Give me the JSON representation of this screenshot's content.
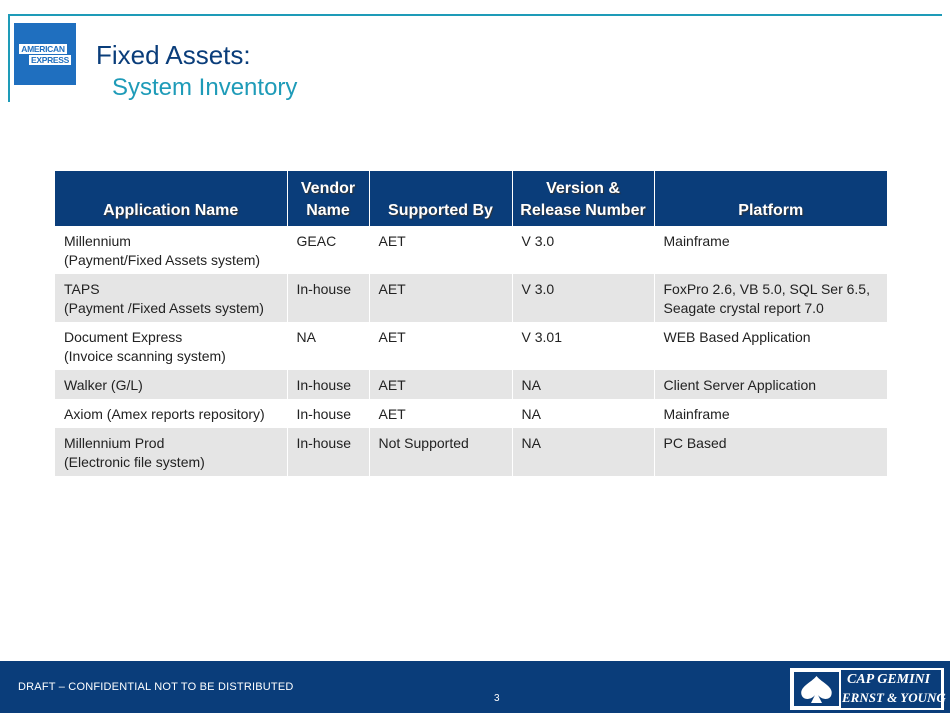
{
  "header": {
    "title": "Fixed Assets:",
    "subtitle": "System Inventory",
    "logo_line1": "AMERICAN",
    "logo_line2": "EXPRESS"
  },
  "table": {
    "columns": [
      "Application Name",
      "Vendor Name",
      "Supported By",
      "Version & Release Number",
      "Platform"
    ],
    "column_lines": [
      [
        "Application Name"
      ],
      [
        "Vendor",
        "Name"
      ],
      [
        "Supported By"
      ],
      [
        "Version &",
        "Release Number"
      ],
      [
        "Platform"
      ]
    ],
    "rows": [
      [
        [
          "Millennium",
          "(Payment/Fixed Assets system)"
        ],
        [
          "GEAC"
        ],
        [
          "AET"
        ],
        [
          "V 3.0"
        ],
        [
          "Mainframe"
        ]
      ],
      [
        [
          "TAPS",
          "(Payment /Fixed Assets system)"
        ],
        [
          "In-house"
        ],
        [
          "AET"
        ],
        [
          "V 3.0"
        ],
        [
          "FoxPro 2.6, VB 5.0, SQL Ser 6.5,",
          "Seagate crystal report 7.0"
        ]
      ],
      [
        [
          "Document Express",
          "(Invoice scanning system)"
        ],
        [
          "NA"
        ],
        [
          "AET"
        ],
        [
          "V 3.01"
        ],
        [
          "WEB Based Application"
        ]
      ],
      [
        [
          "Walker (G/L)"
        ],
        [
          "In-house"
        ],
        [
          "AET"
        ],
        [
          "NA"
        ],
        [
          "Client Server Application"
        ]
      ],
      [
        [
          "Axiom (Amex reports repository)"
        ],
        [
          "In-house"
        ],
        [
          "AET"
        ],
        [
          "NA"
        ],
        [
          "Mainframe"
        ]
      ],
      [
        [
          "Millennium Prod",
          "(Electronic file system)"
        ],
        [
          "In-house"
        ],
        [
          "Not Supported"
        ],
        [
          "NA"
        ],
        [
          "PC Based"
        ]
      ]
    ]
  },
  "footer": {
    "confidential": "DRAFT – CONFIDENTIAL NOT TO BE DISTRIBUTED",
    "page_number": "3",
    "partner_line1": "CAP GEMINI",
    "partner_line2": "ERNST & YOUNG"
  },
  "colors": {
    "navy": "#0a3d7a",
    "teal": "#1e9bb8",
    "amex_blue": "#1f6fbf",
    "row_alt": "#e5e5e5"
  },
  "icons": {
    "spade": "spade-icon"
  }
}
